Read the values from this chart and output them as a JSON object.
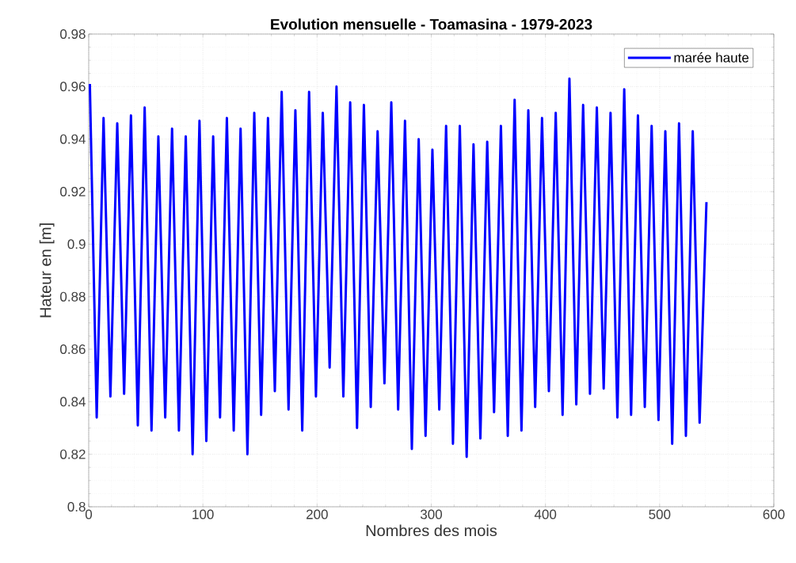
{
  "chart_data": {
    "type": "line",
    "title": "Evolution mensuelle - Toamasina - 1979-2023",
    "xlabel": "Nombres des mois",
    "ylabel": "Hateur en [m]",
    "x": [
      1,
      7,
      13,
      19,
      25,
      31,
      37,
      43,
      49,
      55,
      61,
      67,
      73,
      79,
      85,
      91,
      97,
      103,
      109,
      115,
      121,
      127,
      133,
      139,
      145,
      151,
      157,
      163,
      169,
      175,
      181,
      187,
      193,
      199,
      205,
      211,
      217,
      223,
      229,
      235,
      241,
      247,
      253,
      259,
      265,
      271,
      277,
      283,
      289,
      295,
      301,
      307,
      313,
      319,
      325,
      331,
      337,
      343,
      349,
      355,
      361,
      367,
      373,
      379,
      385,
      391,
      397,
      403,
      409,
      415,
      421,
      427,
      433,
      439,
      445,
      451,
      457,
      463,
      469,
      475,
      481,
      487,
      493,
      499,
      505,
      511,
      517,
      523,
      529,
      535,
      541
    ],
    "series": [
      {
        "name": "marée haute",
        "color": "#0000ff",
        "values": [
          0.961,
          0.834,
          0.948,
          0.842,
          0.946,
          0.843,
          0.949,
          0.831,
          0.952,
          0.829,
          0.941,
          0.834,
          0.944,
          0.829,
          0.941,
          0.82,
          0.947,
          0.825,
          0.941,
          0.834,
          0.948,
          0.829,
          0.944,
          0.82,
          0.95,
          0.835,
          0.948,
          0.844,
          0.958,
          0.837,
          0.951,
          0.829,
          0.958,
          0.842,
          0.95,
          0.853,
          0.96,
          0.842,
          0.954,
          0.83,
          0.953,
          0.838,
          0.943,
          0.847,
          0.954,
          0.837,
          0.947,
          0.822,
          0.94,
          0.827,
          0.936,
          0.837,
          0.945,
          0.824,
          0.945,
          0.819,
          0.938,
          0.826,
          0.939,
          0.836,
          0.945,
          0.827,
          0.955,
          0.829,
          0.951,
          0.838,
          0.948,
          0.844,
          0.95,
          0.835,
          0.963,
          0.839,
          0.953,
          0.843,
          0.952,
          0.845,
          0.95,
          0.834,
          0.959,
          0.835,
          0.949,
          0.838,
          0.945,
          0.833,
          0.943,
          0.824,
          0.946,
          0.827,
          0.943,
          0.832,
          0.916
        ]
      }
    ],
    "xlim": [
      0,
      600
    ],
    "xticks": [
      0,
      100,
      200,
      300,
      400,
      500,
      600
    ],
    "ylim": [
      0.8,
      0.98
    ],
    "yticks": [
      0.8,
      0.82,
      0.84,
      0.86,
      0.88,
      0.9,
      0.92,
      0.94,
      0.96,
      0.98
    ],
    "grid": true,
    "legend": "top right",
    "marker": "none",
    "line_style": "solid"
  }
}
